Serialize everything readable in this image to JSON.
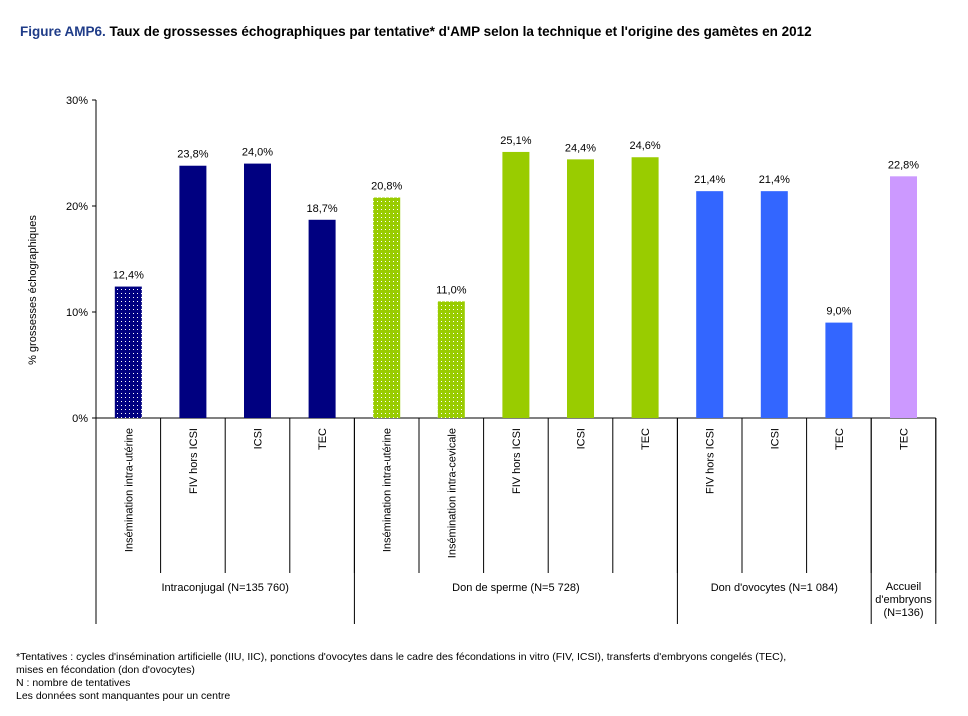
{
  "title": {
    "prefix": "Figure AMP6.",
    "text": "Taux de grossesses échographiques par tentative* d'AMP selon la technique et l'origine des gamètes en 2012"
  },
  "chart_data": {
    "type": "bar",
    "title": "Taux de grossesses échographiques par tentative* d'AMP selon la technique et l'origine des gamètes en 2012",
    "ylabel": "% grossesses échographiques",
    "ylim": [
      0,
      30
    ],
    "yticks": [
      "0%",
      "10%",
      "20%",
      "30%"
    ],
    "categories": [
      "Insémination intra-utérine",
      "FIV hors ICSI",
      "ICSI",
      "TEC",
      "Insémination intra-utérine",
      "Insémination intra-cevicale",
      "FIV hors ICSI",
      "ICSI",
      "TEC",
      "FIV hors ICSI",
      "ICSI",
      "TEC",
      "TEC"
    ],
    "values": [
      12.4,
      23.8,
      24.0,
      18.7,
      20.8,
      11.0,
      25.1,
      24.4,
      24.6,
      21.4,
      21.4,
      9.0,
      22.8
    ],
    "value_labels": [
      "12,4%",
      "23,8%",
      "24,0%",
      "18,7%",
      "20,8%",
      "11,0%",
      "25,1%",
      "24,4%",
      "24,6%",
      "21,4%",
      "21,4%",
      "9,0%",
      "22,8%"
    ],
    "colors": [
      "#000080",
      "#000080",
      "#000080",
      "#000080",
      "#99cc00",
      "#99cc00",
      "#99cc00",
      "#99cc00",
      "#99cc00",
      "#3366ff",
      "#3366ff",
      "#3366ff",
      "#cc99ff"
    ],
    "dotted": [
      true,
      false,
      false,
      false,
      true,
      true,
      false,
      false,
      false,
      false,
      false,
      false,
      false
    ],
    "groups": [
      {
        "label": "Intraconjugal (N=135 760)",
        "count": 4
      },
      {
        "label": "Don de sperme (N=5 728)",
        "count": 5
      },
      {
        "label": "Don d'ovocytes (N=1 084)",
        "count": 3
      },
      {
        "label": "Accueil d'embryons (N=136)",
        "count": 1
      }
    ],
    "grid": false
  },
  "footnotes": [
    "*Tentatives : cycles d'insémination artificielle (IIU, IIC), ponctions d'ovocytes dans le cadre des fécondations in vitro (FIV, ICSI), transferts d'embryons congelés (TEC),",
    "mises en fécondation (don d'ovocytes)",
    "N : nombre de tentatives",
    "Les données sont manquantes pour un centre"
  ]
}
